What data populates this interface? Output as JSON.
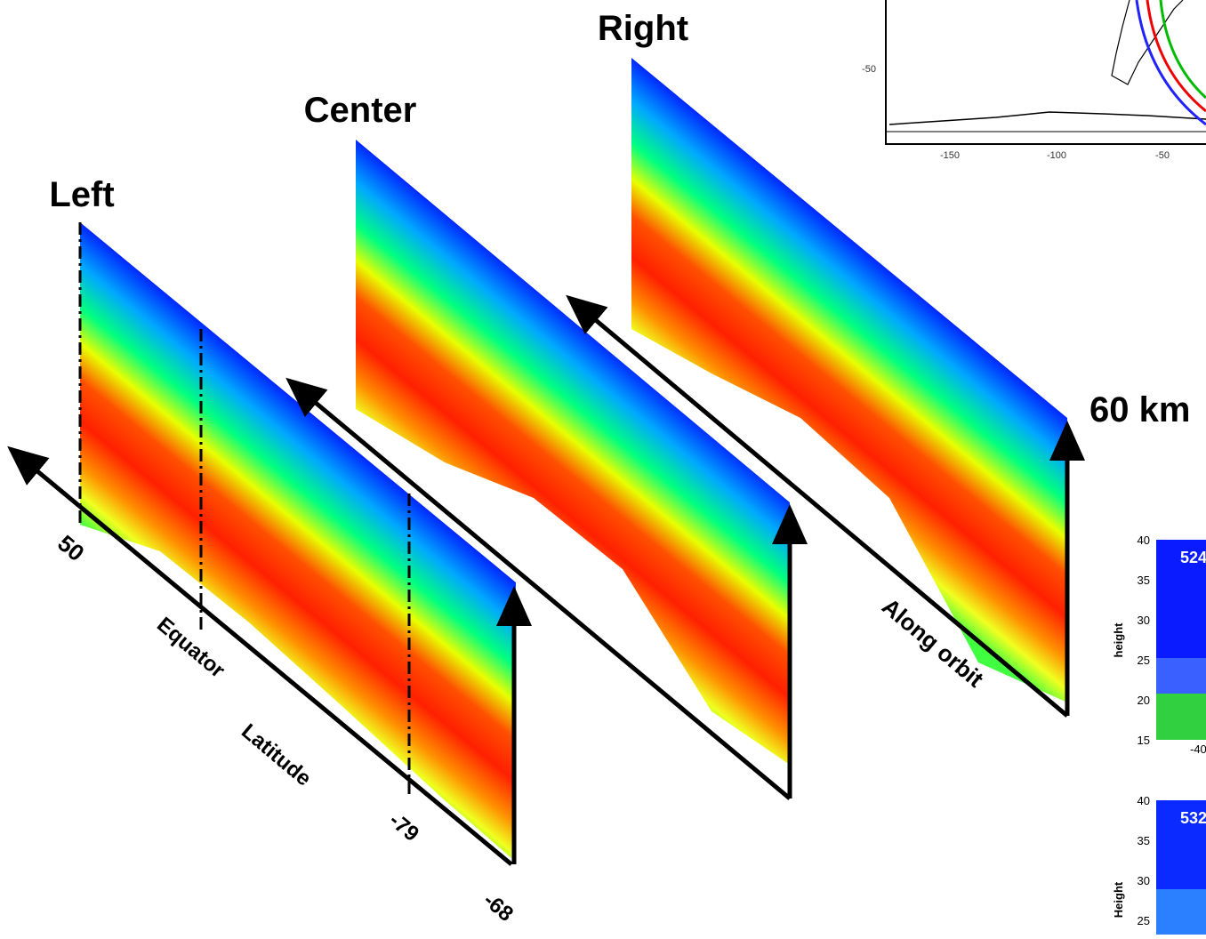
{
  "labels": {
    "left": "Left",
    "center": "Center",
    "right": "Right",
    "height": "60 km",
    "orbit": "Along orbit",
    "lat_north": "50",
    "equator": "Equator",
    "latitude": "Latitude",
    "lat_79": "-79",
    "lat_68": "-68"
  },
  "map": {
    "y_tick": "-50",
    "x_ticks": [
      "-150",
      "-100",
      "-50"
    ]
  },
  "insets": [
    {
      "label": "524",
      "y_label": "height",
      "y_ticks": [
        "40",
        "35",
        "30",
        "25",
        "20",
        "15"
      ],
      "x_tick": "-40"
    },
    {
      "label": "532",
      "y_label": "Height",
      "y_ticks": [
        "40",
        "35",
        "30",
        "25"
      ]
    }
  ]
}
